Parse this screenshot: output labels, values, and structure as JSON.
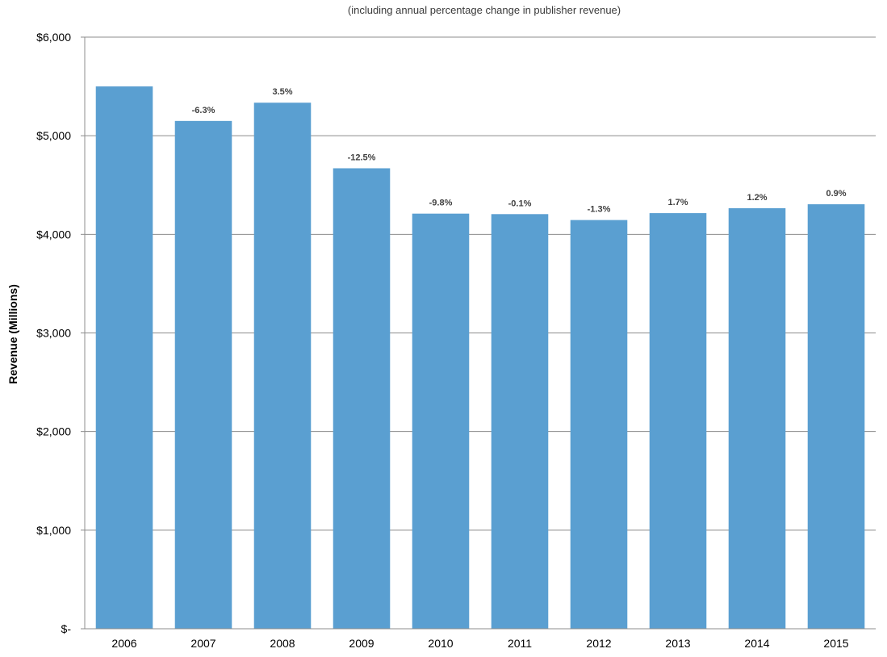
{
  "chart_data": {
    "type": "bar",
    "title": "",
    "subtitle": "(including annual percentage change in publisher revenue)",
    "xlabel": "",
    "ylabel": "Revenue (Millions)",
    "ylim": [
      0,
      6000
    ],
    "yticks": [
      0,
      1000,
      2000,
      3000,
      4000,
      5000,
      6000
    ],
    "ytick_labels": [
      "$-",
      "$1,000",
      "$2,000",
      "$3,000",
      "$4,000",
      "$5,000",
      "$6,000"
    ],
    "grid": true,
    "legend": "none",
    "bar_color": "#5a9fd1",
    "categories": [
      "2006",
      "2007",
      "2008",
      "2009",
      "2010",
      "2011",
      "2012",
      "2013",
      "2014",
      "2015"
    ],
    "values": [
      5500,
      5150,
      5335,
      4670,
      4210,
      4205,
      4145,
      4215,
      4265,
      4305
    ],
    "data_labels": [
      "",
      "-6.3%",
      "3.5%",
      "-12.5%",
      "-9.8%",
      "-0.1%",
      "-1.3%",
      "1.7%",
      "1.2%",
      "0.9%"
    ]
  }
}
